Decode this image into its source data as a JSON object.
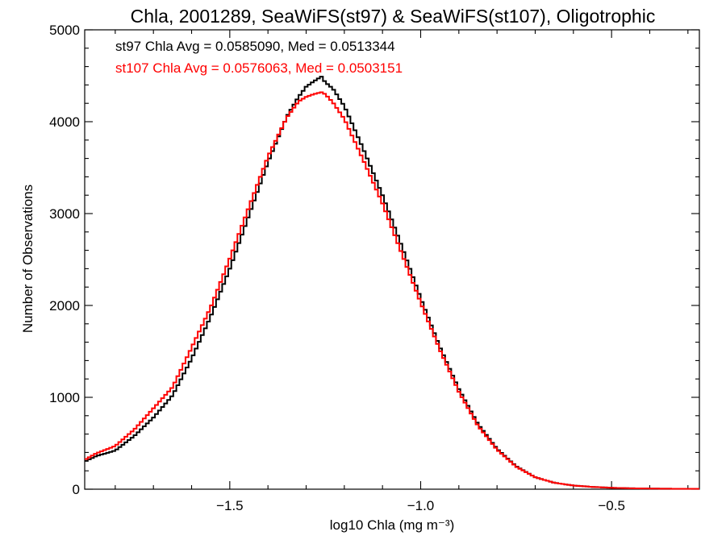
{
  "chart_data": {
    "type": "line",
    "title": "Chla, 2001289, SeaWiFS(st97) & SeaWiFS(st107), Oligotrophic",
    "xlabel": "log10 Chla (mg m⁻³)",
    "ylabel": "Number of Observations",
    "xlim": [
      -1.88,
      -0.27
    ],
    "ylim": [
      0,
      5000
    ],
    "x_ticks": [
      -1.5,
      -1.0,
      -0.5
    ],
    "x_tick_labels": [
      "−1.5",
      "−1.0",
      "−0.5"
    ],
    "y_ticks": [
      0,
      1000,
      2000,
      3000,
      4000,
      5000
    ],
    "y_tick_labels": [
      "0",
      "1000",
      "2000",
      "3000",
      "4000",
      "5000"
    ],
    "grid": false,
    "annotations": [
      {
        "text": "st97 Chla Avg = 0.0585090, Med = 0.0513344",
        "color": "#000000"
      },
      {
        "text": "st107 Chla Avg = 0.0576063, Med = 0.0503151",
        "color": "#ff0000"
      }
    ],
    "series": [
      {
        "color": "#000000",
        "x": [
          -1.88,
          -1.85,
          -1.8,
          -1.75,
          -1.7,
          -1.65,
          -1.6,
          -1.55,
          -1.5,
          -1.45,
          -1.4,
          -1.35,
          -1.32,
          -1.3,
          -1.28,
          -1.26,
          -1.25,
          -1.23,
          -1.2,
          -1.15,
          -1.1,
          -1.05,
          -1.0,
          -0.95,
          -0.9,
          -0.85,
          -0.8,
          -0.75,
          -0.7,
          -0.65,
          -0.6,
          -0.55,
          -0.5,
          -0.45,
          -0.4,
          -0.35,
          -0.3,
          -0.27
        ],
        "values": [
          300,
          360,
          420,
          580,
          780,
          1020,
          1420,
          1880,
          2400,
          2980,
          3560,
          4060,
          4270,
          4380,
          4440,
          4490,
          4430,
          4360,
          4170,
          3700,
          3200,
          2650,
          2080,
          1550,
          1090,
          710,
          440,
          250,
          130,
          70,
          40,
          25,
          15,
          10,
          7,
          5,
          4,
          4
        ]
      },
      {
        "color": "#ff0000",
        "x": [
          -1.88,
          -1.85,
          -1.8,
          -1.75,
          -1.7,
          -1.65,
          -1.6,
          -1.55,
          -1.5,
          -1.45,
          -1.4,
          -1.35,
          -1.32,
          -1.3,
          -1.28,
          -1.26,
          -1.25,
          -1.23,
          -1.2,
          -1.15,
          -1.1,
          -1.05,
          -1.0,
          -0.95,
          -0.9,
          -0.85,
          -0.8,
          -0.75,
          -0.7,
          -0.65,
          -0.6,
          -0.55,
          -0.5,
          -0.45,
          -0.4,
          -0.35,
          -0.3,
          -0.27
        ],
        "values": [
          320,
          390,
          470,
          650,
          880,
          1110,
          1540,
          1980,
          2510,
          3070,
          3620,
          4050,
          4220,
          4270,
          4300,
          4320,
          4300,
          4210,
          4030,
          3580,
          3110,
          2570,
          2030,
          1520,
          1060,
          690,
          430,
          245,
          130,
          70,
          40,
          25,
          15,
          10,
          7,
          5,
          4,
          4
        ]
      }
    ]
  }
}
